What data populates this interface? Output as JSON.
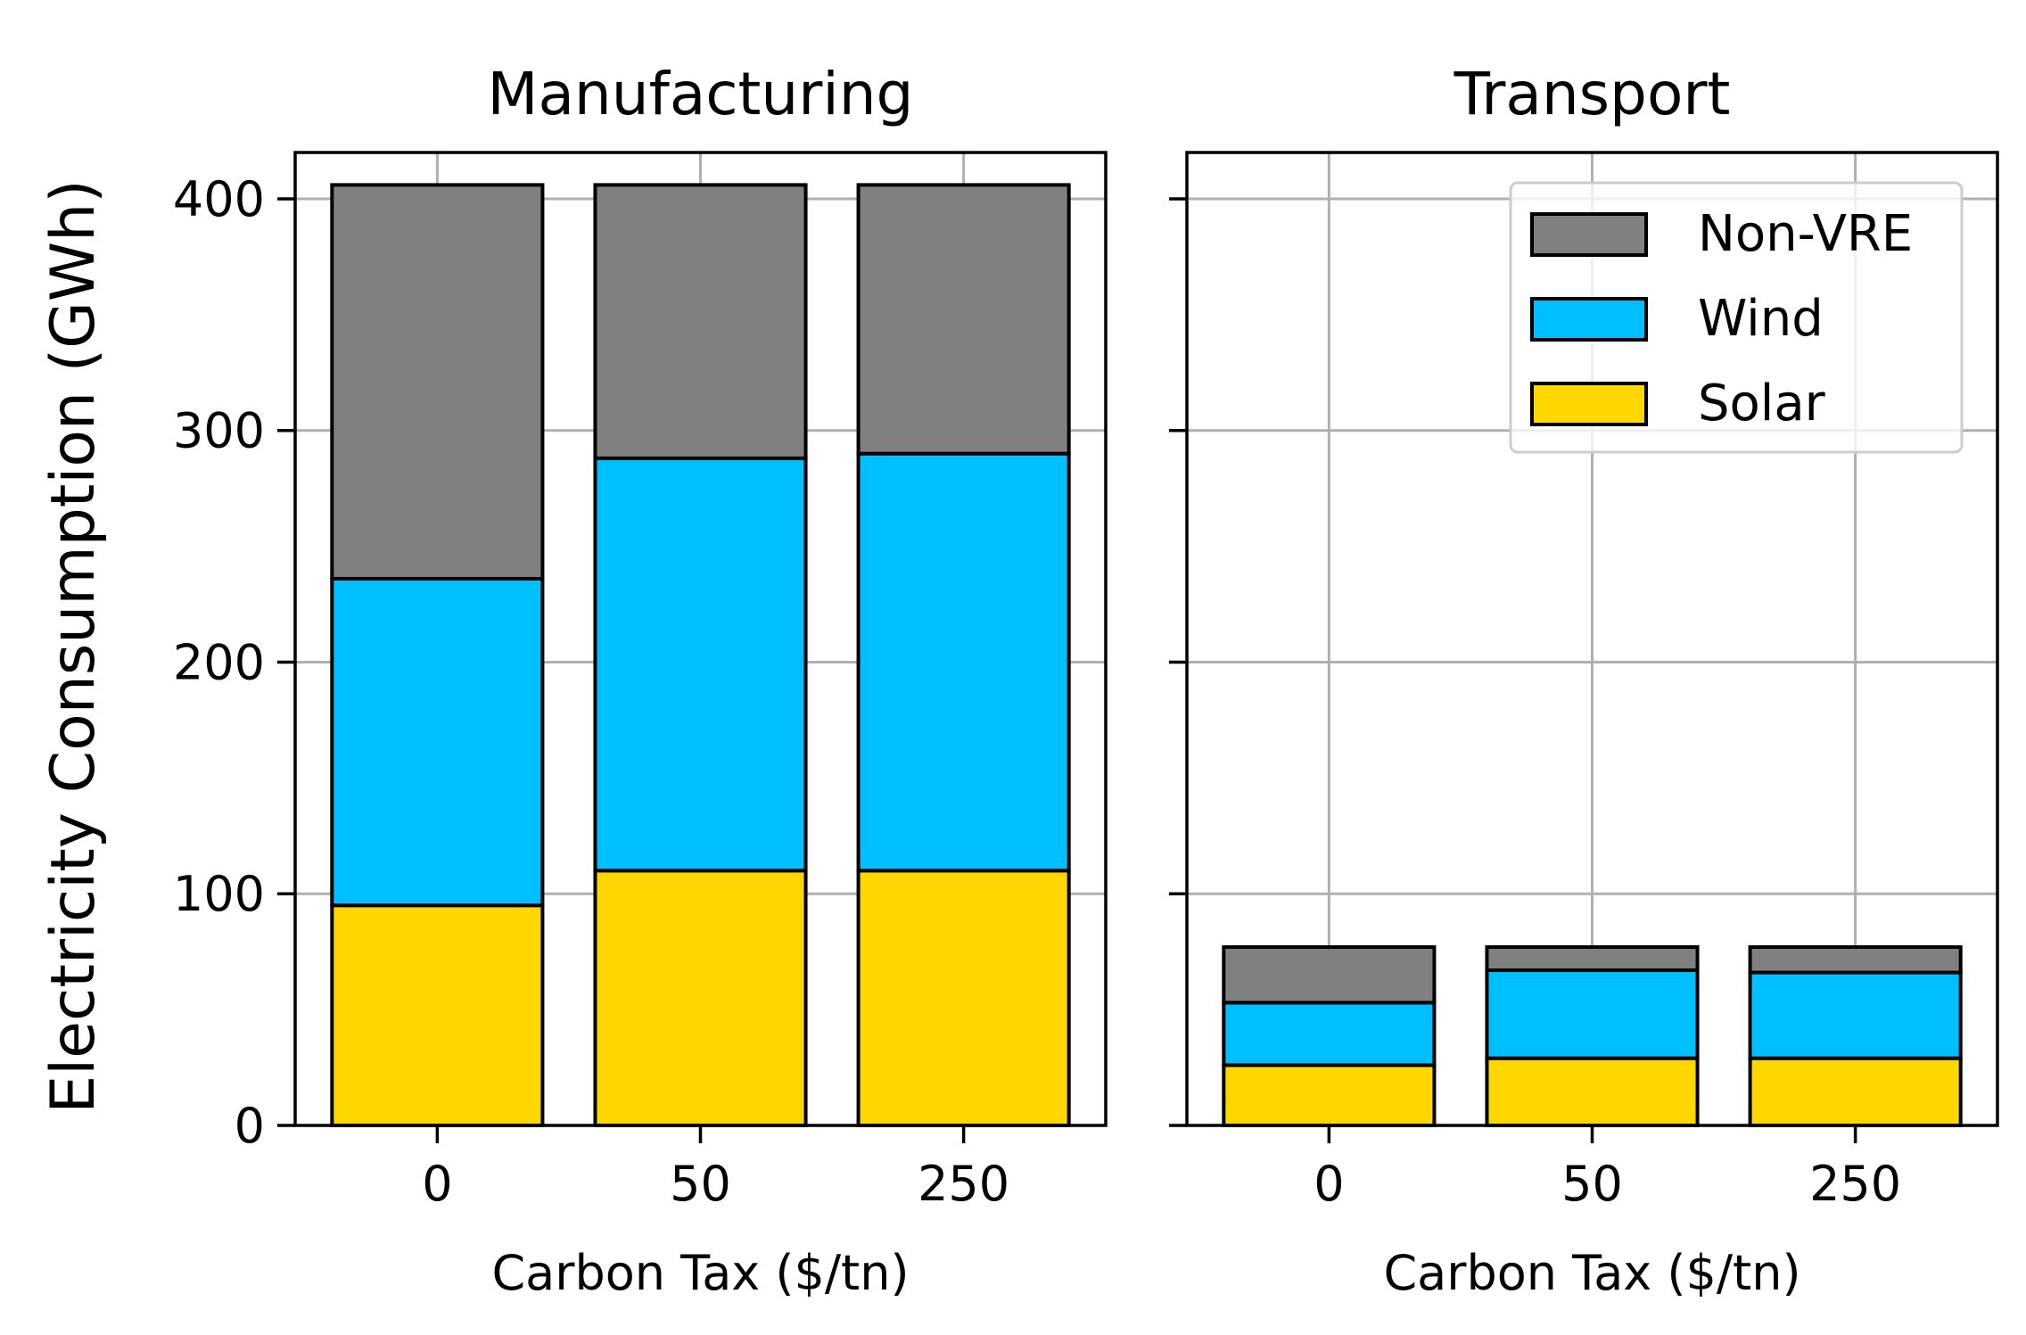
{
  "chart_data": {
    "type": "bar",
    "stacked": true,
    "ylabel": "Electricity Consumption (GWh)",
    "ylim": [
      0,
      420
    ],
    "yticks": [
      0,
      100,
      200,
      300,
      400
    ],
    "ytick_labels": [
      "0",
      "100",
      "200",
      "300",
      "400"
    ],
    "grid": true,
    "legend": {
      "placement": "top-right",
      "panel": "Transport",
      "entries": [
        "Non-VRE",
        "Wind",
        "Solar"
      ]
    },
    "colors": {
      "Solar": "#FFD700",
      "Wind": "#00BFFF",
      "Non-VRE": "#808080"
    },
    "stack_order": [
      "Solar",
      "Wind",
      "Non-VRE"
    ],
    "panels": [
      {
        "title": "Manufacturing",
        "xlabel": "Carbon Tax ($/tn)",
        "categories": [
          "0",
          "50",
          "250"
        ],
        "show_ytick_labels": true,
        "series": [
          {
            "name": "Solar",
            "values": [
              95,
              110,
              110
            ]
          },
          {
            "name": "Wind",
            "values": [
              141,
              178,
              180
            ]
          },
          {
            "name": "Non-VRE",
            "values": [
              170,
              118,
              116
            ]
          }
        ]
      },
      {
        "title": "Transport",
        "xlabel": "Carbon Tax ($/tn)",
        "categories": [
          "0",
          "50",
          "250"
        ],
        "show_ytick_labels": false,
        "series": [
          {
            "name": "Solar",
            "values": [
              26,
              29,
              29
            ]
          },
          {
            "name": "Wind",
            "values": [
              27,
              38,
              37
            ]
          },
          {
            "name": "Non-VRE",
            "values": [
              24,
              10,
              11
            ]
          }
        ]
      }
    ]
  }
}
